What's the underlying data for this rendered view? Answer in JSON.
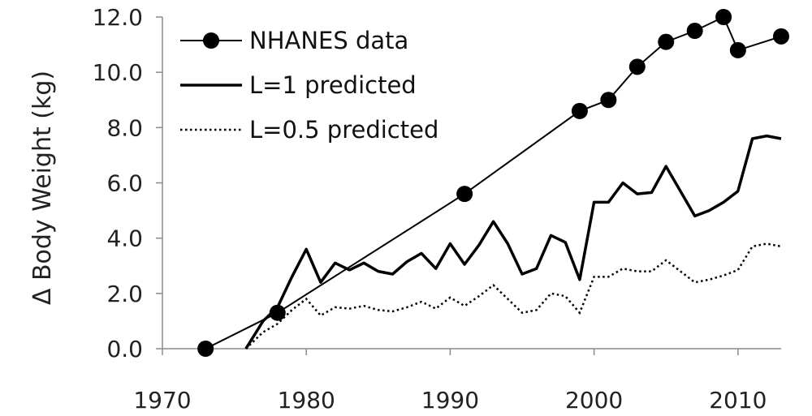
{
  "chart_data": {
    "type": "line",
    "title": "",
    "xlabel": "",
    "ylabel": "Δ Body Weight (kg)",
    "xlim": [
      1970,
      2013
    ],
    "ylim": [
      0,
      12.0
    ],
    "x_ticks": [
      "1970",
      "1980",
      "1990",
      "2000",
      "2010"
    ],
    "y_ticks": [
      "0.0",
      "2.0",
      "4.0",
      "6.0",
      "8.0",
      "10.0",
      "12.0"
    ],
    "grid": false,
    "legend_position": "top-left",
    "series": [
      {
        "name": "NHANES data",
        "style": "line-with-markers",
        "color": "#000000",
        "x": [
          1973,
          1978,
          1991,
          1999,
          2001,
          2003,
          2005,
          2007,
          2009,
          2010,
          2013
        ],
        "y": [
          0.0,
          1.3,
          5.6,
          8.6,
          9.0,
          10.2,
          11.1,
          11.5,
          12.0,
          10.8,
          11.3
        ]
      },
      {
        "name": "L=1 predicted",
        "style": "solid",
        "color": "#000000",
        "x": [
          1975.8,
          1977,
          1978,
          1979,
          1980,
          1981,
          1982,
          1983,
          1984,
          1985,
          1986,
          1987,
          1988,
          1989,
          1990,
          1991,
          1992,
          1993,
          1994,
          1995,
          1996,
          1997,
          1998,
          1999,
          2000,
          2001,
          2002,
          2003,
          2004,
          2005,
          2006,
          2007,
          2008,
          2009,
          2010,
          2011,
          2012,
          2013
        ],
        "y": [
          0.0,
          1.0,
          1.5,
          2.6,
          3.6,
          2.4,
          3.1,
          2.85,
          3.1,
          2.8,
          2.7,
          3.15,
          3.45,
          2.9,
          3.8,
          3.05,
          3.75,
          4.6,
          3.8,
          2.7,
          2.9,
          4.1,
          3.85,
          2.5,
          5.3,
          5.3,
          6.0,
          5.6,
          5.65,
          6.6,
          5.7,
          4.8,
          5.0,
          5.3,
          5.7,
          7.6,
          7.7,
          7.6
        ]
      },
      {
        "name": "L=0.5 predicted",
        "style": "dotted",
        "color": "#000000",
        "x": [
          1975.8,
          1977,
          1978,
          1979,
          1980,
          1981,
          1982,
          1983,
          1984,
          1985,
          1986,
          1987,
          1988,
          1989,
          1990,
          1991,
          1992,
          1993,
          1994,
          1995,
          1996,
          1997,
          1998,
          1999,
          2000,
          2001,
          2002,
          2003,
          2004,
          2005,
          2006,
          2007,
          2008,
          2009,
          2010,
          2011,
          2012,
          2013
        ],
        "y": [
          0.0,
          0.6,
          0.9,
          1.4,
          1.8,
          1.2,
          1.5,
          1.45,
          1.55,
          1.4,
          1.35,
          1.5,
          1.7,
          1.45,
          1.85,
          1.55,
          1.9,
          2.3,
          1.8,
          1.3,
          1.4,
          2.0,
          1.9,
          1.3,
          2.6,
          2.6,
          2.9,
          2.8,
          2.8,
          3.2,
          2.8,
          2.4,
          2.5,
          2.65,
          2.85,
          3.7,
          3.8,
          3.7
        ]
      }
    ]
  }
}
